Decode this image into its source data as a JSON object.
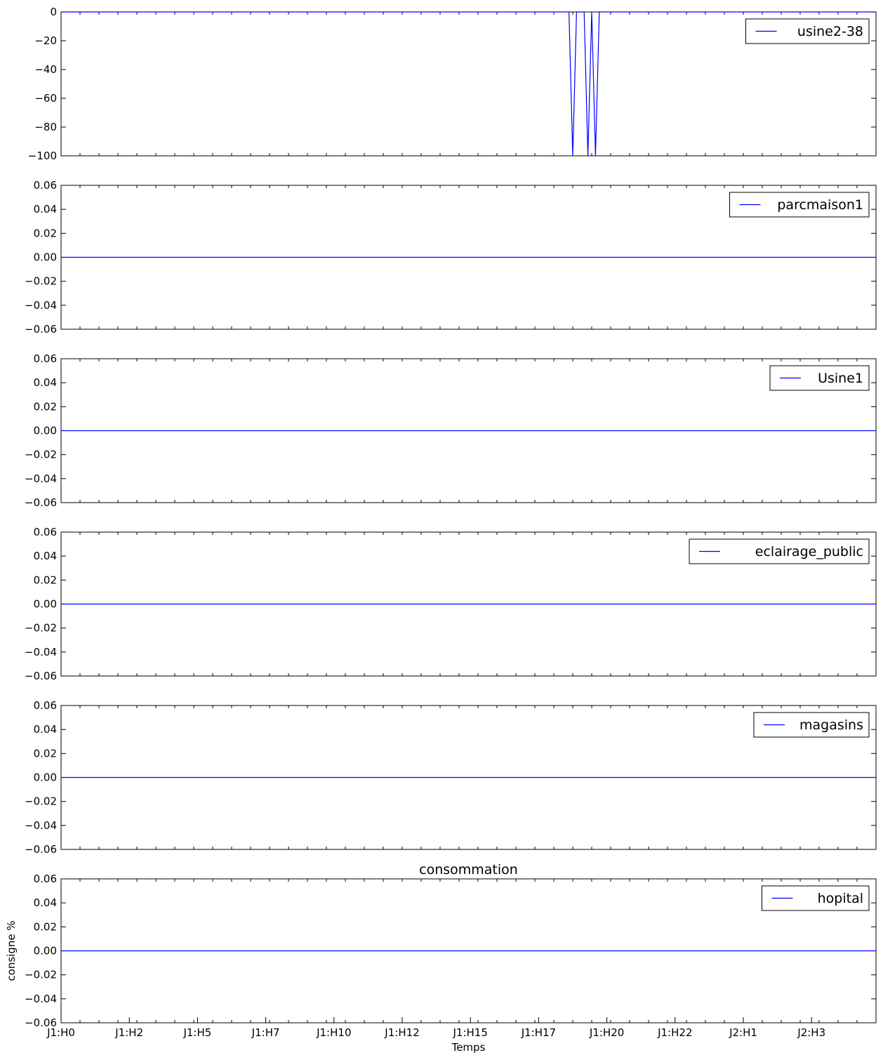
{
  "chart_data": [
    {
      "type": "line",
      "series": [
        {
          "name": "usine2-38",
          "color": "#0000ff",
          "points": [
            [
              0,
              0
            ],
            [
              134,
              0
            ],
            [
              135,
              -100
            ],
            [
              136,
              0
            ],
            [
              138,
              0
            ],
            [
              139,
              -100
            ],
            [
              140,
              0
            ],
            [
              141,
              -100
            ],
            [
              142,
              0
            ],
            [
              215,
              0
            ]
          ]
        }
      ],
      "x_range": [
        0,
        215
      ],
      "ylim": [
        -100,
        0
      ],
      "yticks": [
        0,
        -20,
        -40,
        -60,
        -80,
        -100
      ],
      "ytick_labels": [
        "0",
        "−20",
        "−40",
        "−60",
        "−80",
        "−100"
      ],
      "legend_position": "top-right"
    },
    {
      "type": "line",
      "series": [
        {
          "name": "parcmaison1",
          "color": "#0000ff",
          "points": [
            [
              0,
              0
            ],
            [
              215,
              0
            ]
          ]
        }
      ],
      "x_range": [
        0,
        215
      ],
      "ylim": [
        -0.06,
        0.06
      ],
      "yticks": [
        0.06,
        0.04,
        0.02,
        0,
        -0.02,
        -0.04,
        -0.06
      ],
      "ytick_labels": [
        "0.06",
        "0.04",
        "0.02",
        "0.00",
        "−0.02",
        "−0.04",
        "−0.06"
      ],
      "legend_position": "top-right"
    },
    {
      "type": "line",
      "series": [
        {
          "name": "Usine1",
          "color": "#0000ff",
          "points": [
            [
              0,
              0
            ],
            [
              215,
              0
            ]
          ]
        }
      ],
      "x_range": [
        0,
        215
      ],
      "ylim": [
        -0.06,
        0.06
      ],
      "yticks": [
        0.06,
        0.04,
        0.02,
        0,
        -0.02,
        -0.04,
        -0.06
      ],
      "ytick_labels": [
        "0.06",
        "0.04",
        "0.02",
        "0.00",
        "−0.02",
        "−0.04",
        "−0.06"
      ],
      "legend_position": "top-right"
    },
    {
      "type": "line",
      "series": [
        {
          "name": "eclairage_public",
          "color": "#0000ff",
          "points": [
            [
              0,
              0
            ],
            [
              215,
              0
            ]
          ]
        }
      ],
      "x_range": [
        0,
        215
      ],
      "ylim": [
        -0.06,
        0.06
      ],
      "yticks": [
        0.06,
        0.04,
        0.02,
        0,
        -0.02,
        -0.04,
        -0.06
      ],
      "ytick_labels": [
        "0.06",
        "0.04",
        "0.02",
        "0.00",
        "−0.02",
        "−0.04",
        "−0.06"
      ],
      "legend_position": "top-right"
    },
    {
      "type": "line",
      "series": [
        {
          "name": "magasins",
          "color": "#0000ff",
          "points": [
            [
              0,
              0
            ],
            [
              215,
              0
            ]
          ]
        }
      ],
      "x_range": [
        0,
        215
      ],
      "ylim": [
        -0.06,
        0.06
      ],
      "yticks": [
        0.06,
        0.04,
        0.02,
        0,
        -0.02,
        -0.04,
        -0.06
      ],
      "ytick_labels": [
        "0.06",
        "0.04",
        "0.02",
        "0.00",
        "−0.02",
        "−0.04",
        "−0.06"
      ],
      "legend_position": "top-right"
    },
    {
      "type": "line",
      "title": "consommation",
      "xlabel": "Temps",
      "ylabel": "consigne %",
      "series": [
        {
          "name": "hopital",
          "color": "#0000ff",
          "points": [
            [
              0,
              0
            ],
            [
              215,
              0
            ]
          ]
        }
      ],
      "x_range": [
        0,
        215
      ],
      "xticks": [
        0,
        18,
        36,
        54,
        72,
        90,
        108,
        126,
        144,
        162,
        180,
        198
      ],
      "xtick_labels": [
        "J1:H0",
        "J1:H2",
        "J1:H5",
        "J1:H7",
        "J1:H10",
        "J1:H12",
        "J1:H15",
        "J1:H17",
        "J1:H20",
        "J1:H22",
        "J2:H1",
        "J2:H3"
      ],
      "ylim": [
        -0.06,
        0.06
      ],
      "yticks": [
        0.06,
        0.04,
        0.02,
        0,
        -0.02,
        -0.04,
        -0.06
      ],
      "ytick_labels": [
        "0.06",
        "0.04",
        "0.02",
        "0.00",
        "−0.02",
        "−0.04",
        "−0.06"
      ],
      "legend_position": "top-right"
    }
  ]
}
